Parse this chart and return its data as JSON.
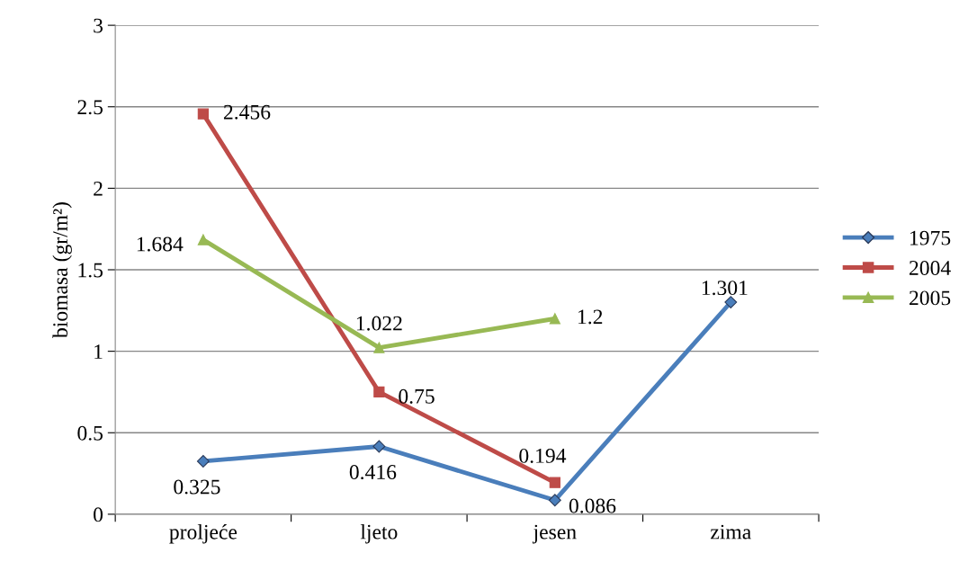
{
  "chart_data": {
    "type": "line",
    "ylabel": "biomasa (gr/m²)",
    "categories": [
      "proljeće",
      "ljeto",
      "jesen",
      "zima"
    ],
    "series": [
      {
        "name": "1975",
        "color": "#4a7ebb",
        "marker": "diamond",
        "values": [
          0.325,
          0.416,
          0.086,
          1.301
        ]
      },
      {
        "name": "2004",
        "color": "#be4b48",
        "marker": "square",
        "values": [
          2.456,
          0.75,
          0.194,
          null
        ]
      },
      {
        "name": "2005",
        "color": "#98b954",
        "marker": "triangle",
        "values": [
          1.684,
          1.022,
          1.2,
          null
        ]
      }
    ],
    "ylim": [
      0,
      3
    ],
    "yticks": [
      0,
      0.5,
      1,
      1.5,
      2,
      2.5,
      3
    ],
    "grid": "y",
    "legend": "right",
    "data_labels": true,
    "line_style": "solid"
  }
}
